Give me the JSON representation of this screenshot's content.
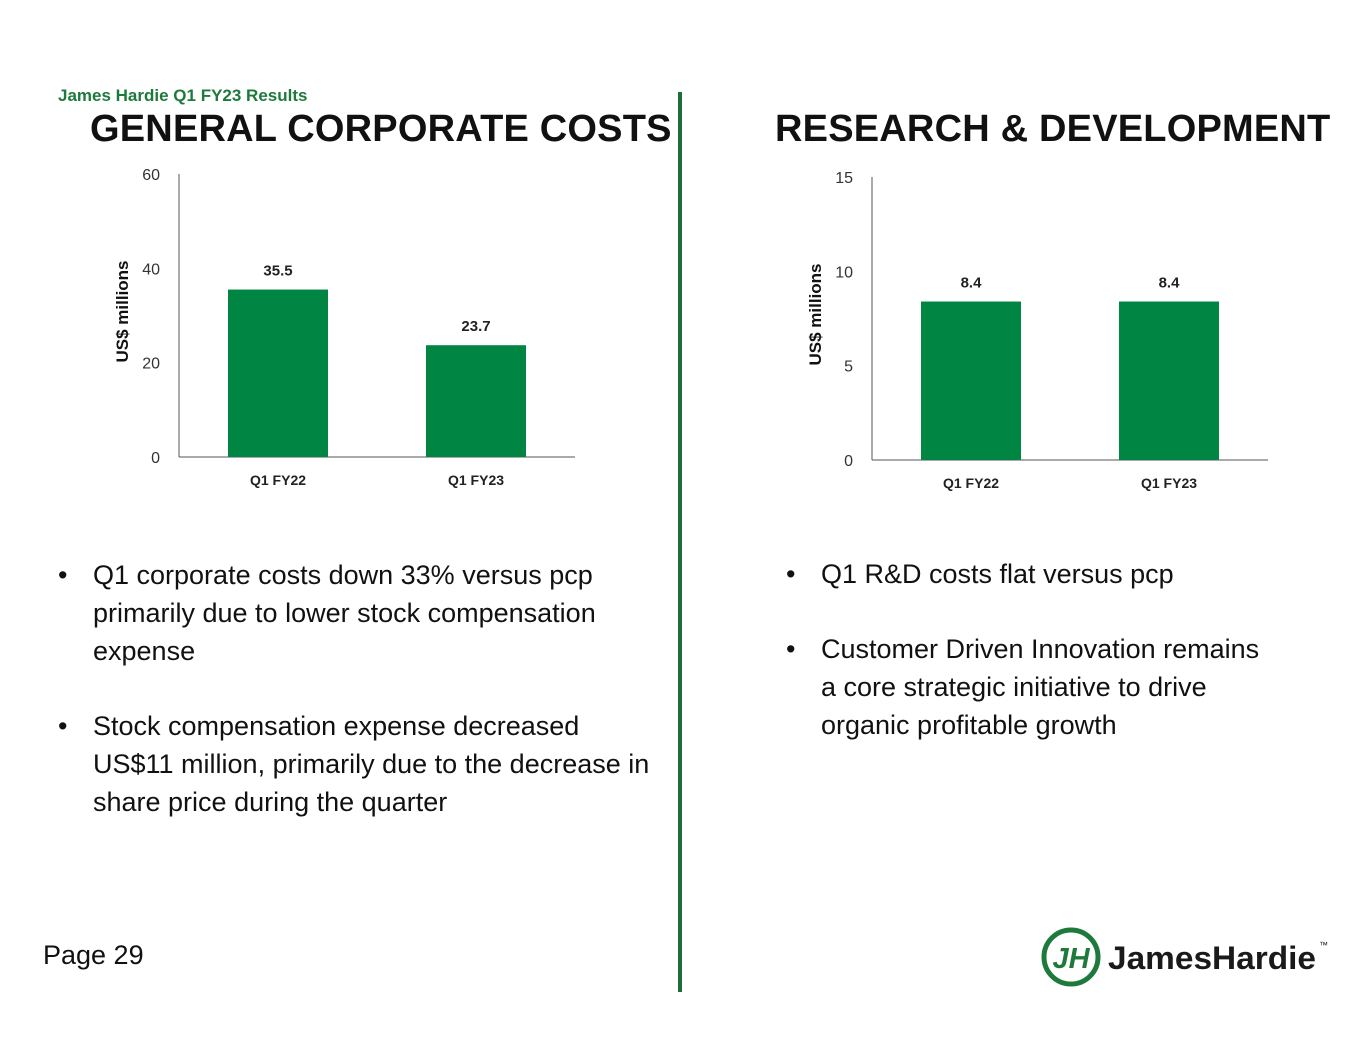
{
  "header": {
    "report_label": "James Hardie Q1 FY23 Results"
  },
  "left": {
    "title": "GENERAL CORPORATE COSTS",
    "bullets": [
      "Q1 corporate costs down 33% versus pcp primarily due to lower stock compensation expense",
      "Stock compensation expense decreased US$11 million, primarily due to the decrease in share price during the quarter"
    ]
  },
  "right": {
    "title": "RESEARCH & DEVELOPMENT",
    "bullets": [
      "Q1 R&D costs flat versus pcp",
      "Customer Driven Innovation remains a core strategic initiative to drive organic profitable growth"
    ]
  },
  "bullet_glyph": "•",
  "footer": {
    "page_label": "Page 29",
    "logo_text": "JamesHardie",
    "logo_mark": "JH",
    "trademark": "™"
  },
  "colors": {
    "bar": "#008542",
    "accent": "#1f6e3a",
    "header": "#1e7a3c"
  },
  "chart_data": [
    {
      "type": "bar",
      "title": "GENERAL CORPORATE COSTS",
      "categories": [
        "Q1 FY22",
        "Q1 FY23"
      ],
      "values": [
        35.5,
        23.7
      ],
      "data_labels": [
        "35.5",
        "23.7"
      ],
      "ylabel": "US$ millions",
      "xlabel": "",
      "ylim": [
        0,
        60
      ],
      "yticks": [
        0,
        20,
        40,
        60
      ],
      "grid": false
    },
    {
      "type": "bar",
      "title": "RESEARCH & DEVELOPMENT",
      "categories": [
        "Q1 FY22",
        "Q1 FY23"
      ],
      "values": [
        8.4,
        8.4
      ],
      "data_labels": [
        "8.4",
        "8.4"
      ],
      "ylabel": "US$ millions",
      "xlabel": "",
      "ylim": [
        0,
        15
      ],
      "yticks": [
        0,
        5,
        10,
        15
      ],
      "grid": false
    }
  ]
}
